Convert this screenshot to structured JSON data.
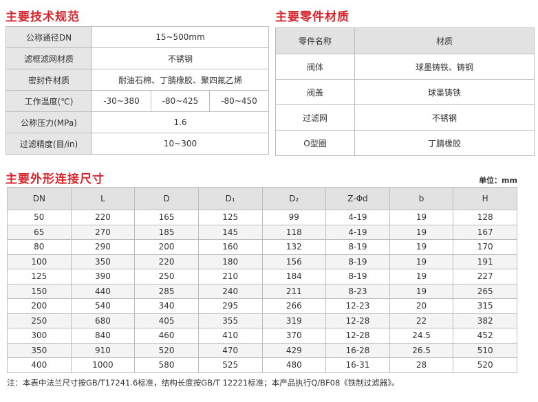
{
  "spec": {
    "title": "主要技术规范",
    "rows": [
      {
        "label": "公称通径DN",
        "values": [
          "15~500mm"
        ]
      },
      {
        "label": "滤框滤网材质",
        "values": [
          "不锈钢"
        ]
      },
      {
        "label": "密封件材质",
        "values": [
          "耐油石棉、丁腈橡胶、聚四氟乙烯"
        ]
      },
      {
        "label": "工作温度(℃)",
        "values": [
          "-30~380",
          "-80~425",
          "-80~450"
        ]
      },
      {
        "label": "公称压力(MPa)",
        "values": [
          "1.6"
        ]
      },
      {
        "label": "过滤精度(目/in)",
        "values": [
          "10~300"
        ]
      }
    ]
  },
  "parts": {
    "title": "主要零件材质",
    "header": [
      "零件名称",
      "材质"
    ],
    "rows": [
      [
        "阀体",
        "球墨铸铁、铸钢"
      ],
      [
        "阀盖",
        "球墨铸铁"
      ],
      [
        "过滤网",
        "不锈钢"
      ],
      [
        "O型圈",
        "丁腈橡胶"
      ]
    ]
  },
  "dims": {
    "title": "主要外形连接尺寸",
    "unit": "单位：mm",
    "header": [
      "DN",
      "L",
      "D",
      "D₁",
      "D₂",
      "Z-Φd",
      "b",
      "H"
    ],
    "rows": [
      [
        "50",
        "220",
        "165",
        "125",
        "99",
        "4-19",
        "19",
        "128"
      ],
      [
        "65",
        "270",
        "185",
        "145",
        "118",
        "4-19",
        "19",
        "167"
      ],
      [
        "80",
        "290",
        "200",
        "160",
        "132",
        "8-19",
        "19",
        "170"
      ],
      [
        "100",
        "350",
        "220",
        "180",
        "156",
        "8-19",
        "19",
        "191"
      ],
      [
        "125",
        "390",
        "250",
        "210",
        "184",
        "8-19",
        "19",
        "227"
      ],
      [
        "150",
        "440",
        "285",
        "240",
        "211",
        "8-23",
        "19",
        "265"
      ],
      [
        "200",
        "540",
        "340",
        "295",
        "266",
        "12-23",
        "20",
        "315"
      ],
      [
        "250",
        "680",
        "405",
        "355",
        "319",
        "12-28",
        "22",
        "382"
      ],
      [
        "300",
        "840",
        "460",
        "410",
        "370",
        "12-28",
        "24.5",
        "452"
      ],
      [
        "350",
        "910",
        "520",
        "470",
        "429",
        "16-28",
        "26.5",
        "510"
      ],
      [
        "400",
        "1000",
        "580",
        "525",
        "480",
        "16-31",
        "28",
        "520"
      ]
    ],
    "note": "注：本表中法兰尺寸按GB/T17241.6标准，结构长度按GB/T 12221标准；本产品执行Q/BF08《铁制过滤器》。"
  }
}
